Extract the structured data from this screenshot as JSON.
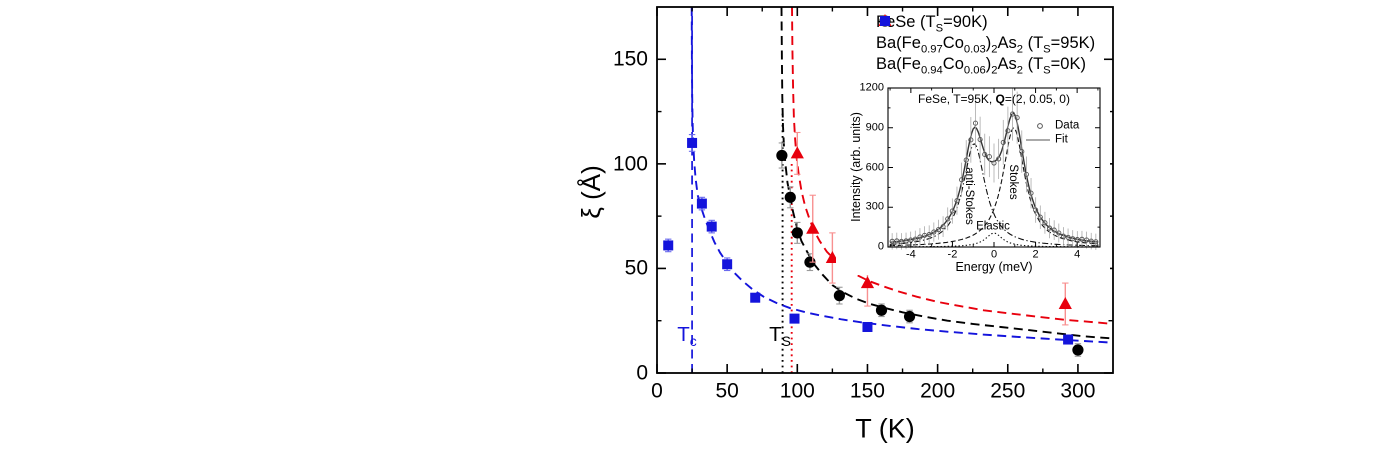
{
  "chart_data": [
    {
      "id": "main",
      "type": "scatter",
      "xlabel": "T (K)",
      "ylabel": "ξ (Å)",
      "xlim": [
        0,
        325
      ],
      "ylim": [
        0,
        175
      ],
      "x_tick_values": [
        0,
        50,
        100,
        150,
        200,
        250,
        300
      ],
      "x_tick_labels": [
        "0",
        "50",
        "100",
        "150",
        "200",
        "250",
        "300"
      ],
      "x_minor_ticks": [
        25,
        75,
        125,
        175,
        225,
        275
      ],
      "y_tick_values": [
        0,
        50,
        100,
        150
      ],
      "y_tick_labels": [
        "0",
        "50",
        "100",
        "150"
      ],
      "y_minor_ticks": [
        25,
        75,
        125
      ],
      "legend_position": "top-right-inside",
      "grid": false,
      "series": [
        {
          "name": "BaFe094Co006As2",
          "label": "Ba(Fe~0.94~Co~0.06~)~2~As~2~ (T~S~=0K)",
          "marker": "square",
          "color": "#1414dc",
          "errorbar_color": "#6a6aee",
          "points_Txi_err": [
            [
              8,
              61,
              3
            ],
            [
              25,
              110,
              4
            ],
            [
              32,
              81,
              3
            ],
            [
              39,
              70,
              3
            ],
            [
              50,
              52,
              3
            ],
            [
              70,
              36,
              2
            ],
            [
              98,
              26,
              2
            ],
            [
              150,
              22,
              2
            ],
            [
              293,
              16,
              2
            ]
          ]
        },
        {
          "name": "FeSe",
          "label": "FeSe (T~S~=90K)",
          "marker": "circle",
          "color": "#000000",
          "errorbar_color": "#9a9a9a",
          "points_Txi_err": [
            [
              89,
              104,
              6
            ],
            [
              95,
              84,
              5
            ],
            [
              100,
              67,
              5
            ],
            [
              109,
              53,
              4
            ],
            [
              130,
              37,
              4
            ],
            [
              160,
              30,
              3
            ],
            [
              180,
              27,
              3
            ],
            [
              300,
              11,
              3
            ]
          ]
        },
        {
          "name": "BaFe097Co003As2",
          "label": "Ba(Fe~0.97~Co~0.03~)~2~As~2~ (T~S~=95K)",
          "marker": "triangle",
          "color": "#e8000d",
          "errorbar_color": "#f89090",
          "points_Txi_err": [
            [
              100,
              105,
              10
            ],
            [
              111,
              69,
              16
            ],
            [
              125,
              55,
              12
            ],
            [
              150,
              43,
              11
            ],
            [
              291,
              33,
              10
            ]
          ]
        }
      ],
      "legend_order": [
        "FeSe",
        "BaFe097Co003As2",
        "BaFe094Co006As2"
      ],
      "fit_curves": [
        {
          "series": "BaFe094Co006As2",
          "color": "#1414dc",
          "style": "dashed",
          "points": [
            [
              24.7,
              175
            ],
            [
              24.9,
              150
            ],
            [
              25.1,
              132
            ],
            [
              25.4,
              120
            ],
            [
              25.8,
              110
            ],
            [
              26.5,
              101
            ],
            [
              27.5,
              93
            ],
            [
              29,
              85
            ],
            [
              31,
              80
            ],
            [
              34,
              74
            ],
            [
              37.5,
              68
            ],
            [
              41,
              62.5
            ],
            [
              45,
              57.5
            ],
            [
              50,
              52.5
            ],
            [
              55,
              48
            ],
            [
              61,
              44
            ],
            [
              68,
              40
            ],
            [
              76,
              36.5
            ],
            [
              85,
              33.5
            ],
            [
              95,
              31
            ],
            [
              106,
              29
            ],
            [
              118,
              27.3
            ],
            [
              132,
              25.6
            ],
            [
              148,
              24
            ],
            [
              166,
              22.5
            ],
            [
              186,
              21
            ],
            [
              208,
              19.7
            ],
            [
              232,
              18.4
            ],
            [
              258,
              17.2
            ],
            [
              286,
              16
            ],
            [
              325,
              14.5
            ]
          ]
        },
        {
          "series": "FeSe",
          "color": "#000000",
          "style": "dashed",
          "points": [
            [
              88.7,
              175
            ],
            [
              89,
              150
            ],
            [
              89.3,
              132
            ],
            [
              89.8,
              118
            ],
            [
              90.5,
              108
            ],
            [
              91.5,
              100
            ],
            [
              93,
              91
            ],
            [
              95,
              84
            ],
            [
              97,
              77
            ],
            [
              100,
              69
            ],
            [
              103,
              63
            ],
            [
              107,
              58
            ],
            [
              112,
              52
            ],
            [
              118,
              47
            ],
            [
              125,
              42
            ],
            [
              133,
              38.5
            ],
            [
              142,
              35.5
            ],
            [
              152,
              33
            ],
            [
              163,
              31
            ],
            [
              175,
              29
            ],
            [
              190,
              27
            ],
            [
              207,
              25
            ],
            [
              225,
              23.5
            ],
            [
              245,
              22
            ],
            [
              265,
              20.5
            ],
            [
              285,
              19
            ],
            [
              305,
              17.5
            ],
            [
              325,
              16.5
            ]
          ]
        },
        {
          "series": "BaFe097Co003As2",
          "color": "#e8000d",
          "style": "dashed",
          "points": [
            [
              96.2,
              175
            ],
            [
              96.5,
              155
            ],
            [
              97,
              136
            ],
            [
              97.6,
              122
            ],
            [
              98.4,
              112
            ],
            [
              99.5,
              103
            ],
            [
              101,
              95
            ],
            [
              103,
              87
            ],
            [
              105.5,
              80
            ],
            [
              108.5,
              74
            ],
            [
              112,
              68
            ],
            [
              116,
              63
            ],
            [
              121,
              58
            ],
            [
              127,
              54
            ],
            [
              134,
              50
            ],
            [
              142,
              47
            ],
            [
              151,
              44
            ],
            [
              161,
              41.5
            ],
            [
              172,
              39
            ],
            [
              185,
              36.5
            ],
            [
              200,
              34
            ],
            [
              216,
              32
            ],
            [
              233,
              30
            ],
            [
              251,
              28.5
            ],
            [
              270,
              27
            ],
            [
              290,
              25.5
            ],
            [
              308,
              24.5
            ],
            [
              325,
              23.5
            ]
          ]
        }
      ],
      "reference_lines": [
        {
          "id": "Tc",
          "x": 25,
          "y_range": [
            0,
            175
          ],
          "color": "#1414dc",
          "style": "dashed",
          "label": "T~c~"
        },
        {
          "id": "Ts1",
          "x": 89.5,
          "y_range": [
            0,
            127
          ],
          "color": "#000000",
          "style": "dotted",
          "label": "T~S~"
        },
        {
          "id": "Ts2",
          "x": 96,
          "y_range": [
            0,
            100
          ],
          "color": "#e8000d",
          "style": "dotted",
          "label": ""
        }
      ]
    },
    {
      "id": "inset",
      "type": "line",
      "title_pre": "FeSe, T=95K, ",
      "title_q": "Q",
      "title_post": "=(2, 0.05, 0)",
      "xlabel": "Energy (meV)",
      "ylabel": "Intensity (arb. units)",
      "xlim": [
        -5.1,
        5.1
      ],
      "ylim": [
        0,
        1200
      ],
      "x_tick_values": [
        -4,
        -2,
        0,
        2,
        4
      ],
      "x_tick_labels": [
        "-4",
        "-2",
        "0",
        "2",
        "4"
      ],
      "x_minor_ticks": [
        -5,
        -3,
        -1,
        1,
        3,
        5
      ],
      "y_tick_values": [
        0,
        300,
        600,
        900,
        1200
      ],
      "y_tick_labels": [
        "0",
        "300",
        "600",
        "900",
        "1200"
      ],
      "y_minor_ticks": [
        150,
        450,
        750,
        1050
      ],
      "legend": [
        {
          "label": "Data",
          "type": "marker"
        },
        {
          "label": "Fit",
          "type": "line"
        }
      ],
      "background_level": 5,
      "peak_components": [
        {
          "name": "anti-Stokes",
          "style": "dashdot",
          "center": -0.95,
          "amplitude": 780,
          "gamma": 0.65
        },
        {
          "name": "Stokes",
          "style": "dashed",
          "center": 0.95,
          "amplitude": 900,
          "gamma": 0.65
        },
        {
          "name": "Elastic",
          "style": "dotted",
          "center": 0.0,
          "amplitude": 105,
          "gamma": 0.5
        }
      ],
      "data_points": {
        "x_start": -4.9,
        "x_end": 4.9,
        "count": 45,
        "follows": "sum-of-components"
      },
      "annotations": [
        {
          "text": "anti-Stokes",
          "rotate": 90
        },
        {
          "text": "Stokes",
          "rotate": 90
        },
        {
          "text": "Elastic",
          "rotate": 0
        }
      ]
    }
  ],
  "colors": {
    "fese": "#000000",
    "co003": "#e8000d",
    "co006": "#1414dc",
    "fit_line": "#333333",
    "inset_frame": "#000000"
  }
}
